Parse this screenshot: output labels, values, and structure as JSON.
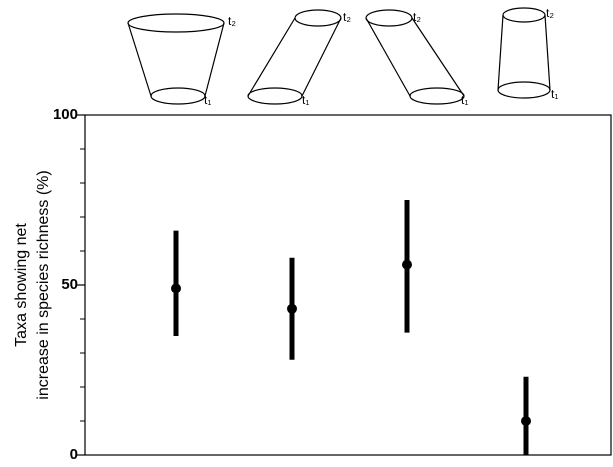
{
  "chart_data": {
    "type": "errorbar",
    "ylabel": [
      "Taxa showing net",
      "increase in species richness (%)"
    ],
    "categories": [
      null,
      null,
      null,
      null
    ],
    "category_icons": [
      {
        "top": "t₂",
        "bottom": "t₁"
      },
      {
        "top": "t₂",
        "bottom": "t₁"
      },
      {
        "top": "t₂",
        "bottom": "t₁"
      },
      {
        "top": "t₂",
        "bottom": "t₁"
      }
    ],
    "values": [
      49,
      43,
      56,
      10
    ],
    "low": [
      35,
      28,
      36,
      0
    ],
    "high": [
      66,
      58,
      75,
      23
    ],
    "color": "#000000",
    "ylim": [
      0,
      100
    ],
    "yticks": [
      0,
      50,
      100
    ],
    "minor_yticks": [
      10,
      20,
      30,
      40,
      60,
      70,
      80,
      90
    ]
  }
}
